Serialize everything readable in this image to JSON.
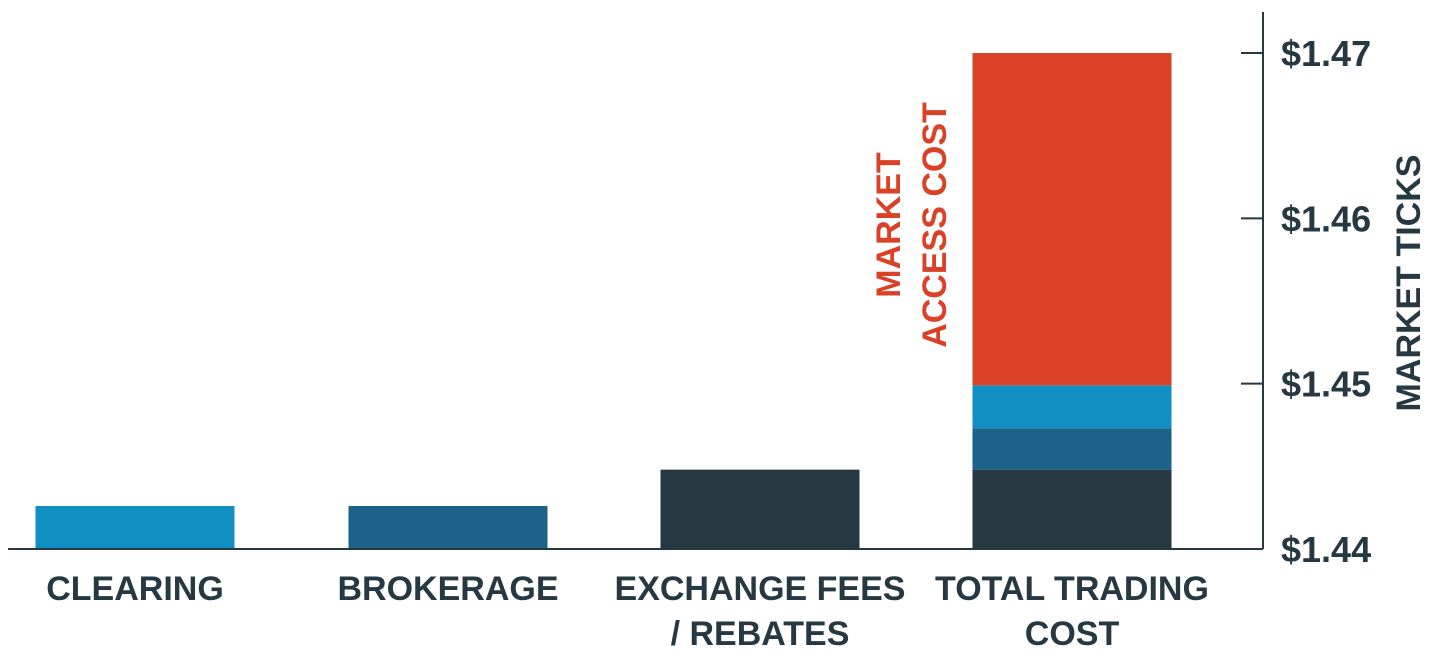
{
  "chart_data": {
    "type": "bar",
    "ylabel": "MARKET TICKS",
    "ylim": [
      1.44,
      1.47
    ],
    "yaxis_position": "right",
    "grid": false,
    "yticks": [
      {
        "value": 1.44,
        "label": "$1.44"
      },
      {
        "value": 1.45,
        "label": "$1.45"
      },
      {
        "value": 1.46,
        "label": "$1.46"
      },
      {
        "value": 1.47,
        "label": "$1.47"
      }
    ],
    "categories": [
      {
        "label": [
          "CLEARING"
        ],
        "value": 1.4426,
        "color": "#128fc2"
      },
      {
        "label": [
          "BROKERAGE"
        ],
        "value": 1.4426,
        "color": "#1b6189"
      },
      {
        "label": [
          "EXCHANGE FEES",
          "/ REBATES"
        ],
        "value": 1.4448,
        "color": "#263942"
      },
      {
        "label": [
          "TOTAL TRADING",
          "COST"
        ],
        "stacked": true,
        "segments": [
          {
            "from": 1.44,
            "to": 1.4448,
            "color": "#263942"
          },
          {
            "from": 1.4448,
            "to": 1.4473,
            "color": "#1b6189"
          },
          {
            "from": 1.4473,
            "to": 1.4499,
            "color": "#128fc2"
          },
          {
            "from": 1.4499,
            "to": 1.47,
            "color": "#db4126"
          }
        ]
      }
    ],
    "annotation": {
      "lines": [
        "MARKET",
        "ACCESS COST"
      ],
      "color": "#db4126",
      "orientation": "vertical"
    }
  }
}
